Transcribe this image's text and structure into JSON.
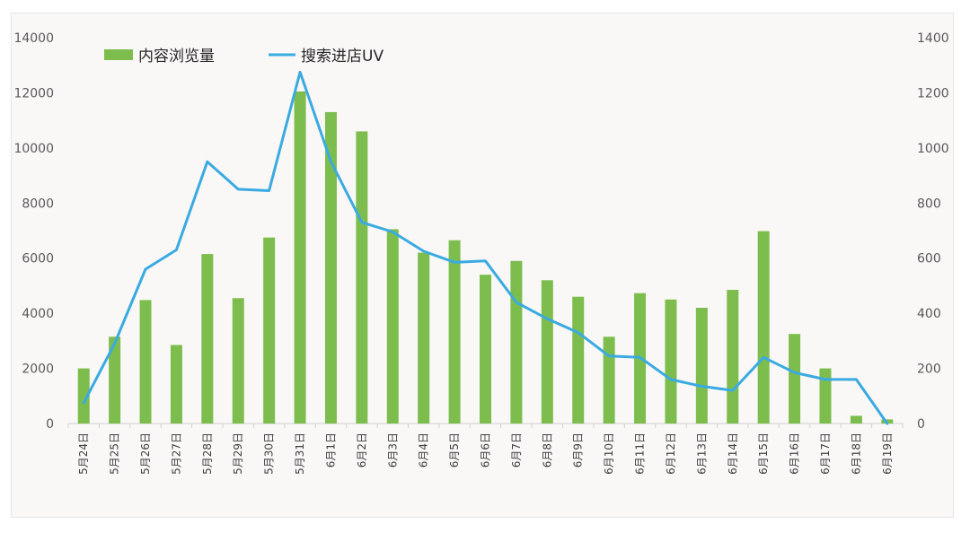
{
  "chart_data": {
    "type": "bar",
    "categories": [
      "5月24日",
      "5月25日",
      "5月26日",
      "5月27日",
      "5月28日",
      "5月29日",
      "5月30日",
      "5月31日",
      "6月1日",
      "6月2日",
      "6月3日",
      "6月4日",
      "6月5日",
      "6月6日",
      "6月7日",
      "6月8日",
      "6月9日",
      "6月10日",
      "6月11日",
      "6月12日",
      "6月13日",
      "6月14日",
      "6月15日",
      "6月16日",
      "6月17日",
      "6月18日",
      "6月19日"
    ],
    "series": [
      {
        "name": "内容浏览量",
        "type": "bar",
        "axis": "left",
        "color": "#7dbd4e",
        "values": [
          2000,
          3150,
          4480,
          2850,
          6150,
          4550,
          6750,
          12050,
          11300,
          10600,
          7050,
          6200,
          6650,
          5400,
          5900,
          5200,
          4600,
          3150,
          4730,
          4500,
          4200,
          4850,
          6980,
          3250,
          2000,
          280,
          150
        ]
      },
      {
        "name": "搜索进店UV",
        "type": "line",
        "axis": "right",
        "color": "#3aaae1",
        "values": [
          75,
          290,
          560,
          630,
          950,
          850,
          845,
          1275,
          950,
          730,
          695,
          625,
          585,
          590,
          440,
          380,
          330,
          245,
          240,
          160,
          135,
          120,
          240,
          185,
          160,
          160,
          0
        ]
      }
    ],
    "y_left": {
      "min": 0,
      "max": 14000,
      "ticks": [
        "0",
        "2000",
        "4000",
        "6000",
        "8000",
        "10000",
        "12000",
        "14000"
      ]
    },
    "y_right": {
      "min": 0,
      "max": 1400,
      "ticks": [
        "0",
        "200",
        "400",
        "600",
        "800",
        "1000",
        "1200",
        "1400"
      ]
    },
    "grid": false,
    "legend": "top-left",
    "xlabel": "",
    "ylabel": ""
  }
}
